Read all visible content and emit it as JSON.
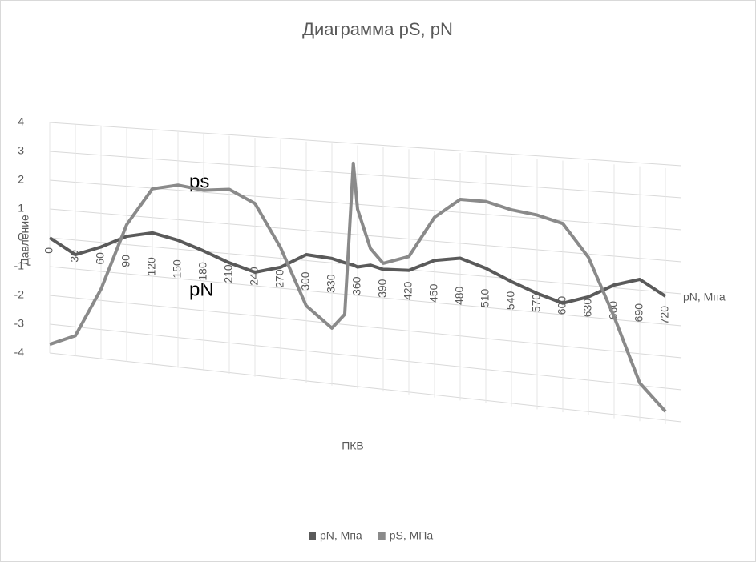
{
  "chart_data": {
    "type": "line3d",
    "title": "Диаграмма pS, pN",
    "x_label": "ПКВ",
    "y_label": "Давление",
    "depth_label": "pN, Мпа",
    "annotations": [
      "ps",
      "pN"
    ],
    "x": [
      0,
      30,
      60,
      90,
      120,
      150,
      180,
      210,
      240,
      270,
      300,
      330,
      345,
      355,
      360,
      375,
      390,
      420,
      450,
      480,
      510,
      540,
      570,
      600,
      630,
      660,
      690,
      720
    ],
    "series": [
      {
        "name": "pN, Мпа",
        "color": "#5a5a5a",
        "values": [
          0,
          -0.5,
          -0.15,
          0.3,
          0.5,
          0.33,
          0.05,
          -0.27,
          -0.5,
          -0.25,
          0.25,
          0.2,
          0.1,
          0.05,
          0,
          0.1,
          0,
          0.05,
          0.45,
          0.6,
          0.35,
          0,
          -0.3,
          -0.53,
          -0.25,
          0.2,
          0.45,
          0
        ]
      },
      {
        "name": "pS, МПа",
        "color": "#8a8a8a",
        "values": [
          -3.7,
          -3.3,
          -1.6,
          0.7,
          2.0,
          2.2,
          2.1,
          2.2,
          1.8,
          0.4,
          -1.45,
          -2.1,
          -1.6,
          3.4,
          1.9,
          0.65,
          0.2,
          0.5,
          1.85,
          2.5,
          2.5,
          2.3,
          2.2,
          2.0,
          1.0,
          -0.8,
          -2.8,
          -3.6
        ]
      }
    ],
    "xlim": [
      0,
      720
    ],
    "xticks": [
      0,
      30,
      60,
      90,
      120,
      150,
      180,
      210,
      240,
      270,
      300,
      330,
      360,
      390,
      420,
      450,
      480,
      510,
      540,
      570,
      600,
      630,
      660,
      690,
      720
    ],
    "ylim": [
      -4,
      4
    ],
    "yticks": [
      -4,
      -3,
      -2,
      -1,
      0,
      1,
      2,
      3,
      4
    ],
    "grid": true,
    "legend": "bottom"
  }
}
